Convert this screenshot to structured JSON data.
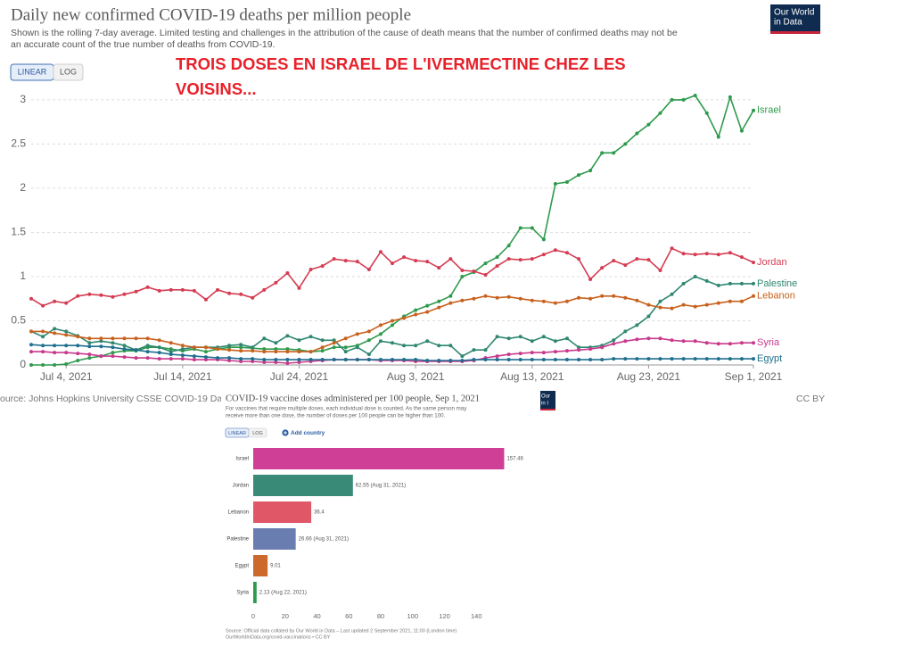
{
  "chart_data": [
    {
      "type": "line",
      "title": "Daily new confirmed COVID-19 deaths per million people",
      "subtitle": [
        "Shown is the rolling 7-day average. Limited testing and challenges in the attribution of the cause of death means that the number of confirmed deaths may not be",
        "an accurate count of the true number of deaths from COVID-19."
      ],
      "controls": [
        "LINEAR",
        "LOG"
      ],
      "annotation": [
        "TROIS DOSES EN ISRAEL DE L'IVERMECTINE CHEZ LES",
        "VOISINS..."
      ],
      "categories": [
        null,
        null,
        null,
        "Jul 4, 2021",
        null,
        null,
        null,
        null,
        null,
        null,
        null,
        null,
        null,
        "Jul 14, 2021",
        null,
        null,
        null,
        null,
        null,
        null,
        null,
        null,
        null,
        "Jul 24, 2021",
        null,
        null,
        null,
        null,
        null,
        null,
        null,
        null,
        null,
        "Aug 3, 2021",
        null,
        null,
        null,
        null,
        null,
        null,
        null,
        null,
        null,
        "Aug 13, 2021",
        null,
        null,
        null,
        null,
        null,
        null,
        null,
        null,
        null,
        "Aug 23, 2021",
        null,
        null,
        null,
        null,
        null,
        null,
        null,
        null,
        "Sep 1, 2021"
      ],
      "series": [
        {
          "name": "Israel",
          "color": "#2e9a4c",
          "values": [
            0,
            0,
            0,
            0.01,
            0.05,
            0.08,
            0.1,
            0.14,
            0.16,
            0.16,
            0.2,
            0.2,
            0.18,
            0.16,
            0.18,
            0.15,
            0.18,
            0.2,
            0.2,
            0.19,
            0.18,
            0.18,
            0.18,
            0.17,
            0.15,
            0.16,
            0.2,
            0.2,
            0.22,
            0.28,
            0.35,
            0.45,
            0.55,
            0.62,
            0.67,
            0.72,
            0.78,
            1.0,
            1.05,
            1.15,
            1.22,
            1.35,
            1.55,
            1.55,
            1.42,
            2.05,
            2.07,
            2.15,
            2.2,
            2.4,
            2.4,
            2.5,
            2.62,
            2.72,
            2.85,
            3.0,
            3.0,
            3.05,
            2.85,
            2.58,
            3.03,
            2.65,
            2.88
          ]
        },
        {
          "name": "Jordan",
          "color": "#d53c52",
          "values": [
            0.75,
            0.67,
            0.72,
            0.7,
            0.78,
            0.8,
            0.79,
            0.77,
            0.8,
            0.83,
            0.88,
            0.84,
            0.85,
            0.85,
            0.84,
            0.74,
            0.85,
            0.81,
            0.8,
            0.76,
            0.85,
            0.93,
            1.04,
            0.87,
            1.08,
            1.12,
            1.2,
            1.18,
            1.17,
            1.08,
            1.28,
            1.15,
            1.22,
            1.18,
            1.17,
            1.1,
            1.2,
            1.07,
            1.06,
            1.02,
            1.12,
            1.2,
            1.19,
            1.2,
            1.25,
            1.3,
            1.27,
            1.2,
            0.97,
            1.1,
            1.18,
            1.13,
            1.2,
            1.19,
            1.07,
            1.32,
            1.26,
            1.25,
            1.26,
            1.25,
            1.27,
            1.22,
            1.16
          ]
        },
        {
          "name": "Palestine",
          "color": "#2f8770",
          "values": [
            0.38,
            0.32,
            0.41,
            0.38,
            0.33,
            0.25,
            0.27,
            0.25,
            0.22,
            0.17,
            0.22,
            0.2,
            0.15,
            0.18,
            0.2,
            0.2,
            0.2,
            0.22,
            0.23,
            0.2,
            0.3,
            0.25,
            0.33,
            0.28,
            0.32,
            0.28,
            0.28,
            0.15,
            0.2,
            0.12,
            0.27,
            0.25,
            0.22,
            0.22,
            0.27,
            0.22,
            0.22,
            0.1,
            0.17,
            0.17,
            0.32,
            0.3,
            0.32,
            0.27,
            0.32,
            0.27,
            0.3,
            0.2,
            0.2,
            0.22,
            0.28,
            0.38,
            0.45,
            0.55,
            0.72,
            0.8,
            0.92,
            1.0,
            0.95,
            0.9,
            0.92,
            0.92,
            0.92
          ]
        },
        {
          "name": "Lebanon",
          "color": "#c8611d",
          "values": [
            0.38,
            0.38,
            0.36,
            0.34,
            0.32,
            0.3,
            0.3,
            0.3,
            0.3,
            0.3,
            0.3,
            0.28,
            0.25,
            0.22,
            0.2,
            0.2,
            0.18,
            0.17,
            0.16,
            0.16,
            0.15,
            0.15,
            0.15,
            0.15,
            0.15,
            0.2,
            0.25,
            0.3,
            0.35,
            0.38,
            0.45,
            0.5,
            0.53,
            0.57,
            0.6,
            0.65,
            0.7,
            0.73,
            0.75,
            0.78,
            0.76,
            0.77,
            0.75,
            0.73,
            0.72,
            0.7,
            0.72,
            0.76,
            0.75,
            0.78,
            0.78,
            0.76,
            0.73,
            0.68,
            0.65,
            0.64,
            0.68,
            0.66,
            0.68,
            0.7,
            0.72,
            0.72,
            0.78
          ]
        },
        {
          "name": "Syria",
          "color": "#c8398c",
          "values": [
            0.15,
            0.15,
            0.14,
            0.14,
            0.13,
            0.12,
            0.1,
            0.1,
            0.09,
            0.08,
            0.08,
            0.07,
            0.07,
            0.07,
            0.06,
            0.06,
            0.06,
            0.05,
            0.04,
            0.04,
            0.03,
            0.03,
            0.02,
            0.03,
            0.04,
            0.05,
            0.06,
            0.06,
            0.06,
            0.06,
            0.05,
            0.05,
            0.05,
            0.04,
            0.04,
            0.04,
            0.04,
            0.04,
            0.05,
            0.08,
            0.1,
            0.12,
            0.13,
            0.14,
            0.14,
            0.15,
            0.16,
            0.17,
            0.18,
            0.2,
            0.24,
            0.27,
            0.29,
            0.3,
            0.3,
            0.28,
            0.27,
            0.27,
            0.25,
            0.24,
            0.24,
            0.25,
            0.25
          ]
        },
        {
          "name": "Egypt",
          "color": "#1f6f8f",
          "values": [
            0.23,
            0.22,
            0.22,
            0.22,
            0.22,
            0.21,
            0.21,
            0.2,
            0.18,
            0.17,
            0.15,
            0.14,
            0.12,
            0.11,
            0.1,
            0.09,
            0.08,
            0.08,
            0.07,
            0.07,
            0.06,
            0.06,
            0.06,
            0.06,
            0.06,
            0.06,
            0.06,
            0.06,
            0.06,
            0.06,
            0.06,
            0.06,
            0.06,
            0.06,
            0.05,
            0.05,
            0.05,
            0.05,
            0.06,
            0.06,
            0.06,
            0.06,
            0.06,
            0.06,
            0.06,
            0.06,
            0.06,
            0.06,
            0.06,
            0.06,
            0.07,
            0.07,
            0.07,
            0.07,
            0.07,
            0.07,
            0.07,
            0.07,
            0.07,
            0.07,
            0.07,
            0.07,
            0.07
          ]
        }
      ],
      "ylim": [
        0,
        3.1
      ],
      "yticks": [
        0,
        0.5,
        1,
        1.5,
        2,
        2.5,
        3
      ],
      "grid": true,
      "source": "ource: Johns Hopkins University CSSE COVID-19 Da",
      "license": "CC BY",
      "logo": [
        "Our World",
        "in Data"
      ]
    },
    {
      "type": "bar",
      "horizontal": true,
      "title": "COVID-19 vaccine doses administered per 100 people, Sep 1, 2021",
      "subtitle": [
        "For vaccines that require multiple doses, each individual dose is counted. As the same person may",
        "receive more than one dose, the number of doses per 100 people can be higher than 100."
      ],
      "controls": [
        "LINEAR",
        "LOG"
      ],
      "add_button": "Add country",
      "logo": [
        "Our",
        "in I"
      ],
      "categories": [
        "Israel",
        "Jordan",
        "Lebanon",
        "Palestine",
        "Egypt",
        "Syria"
      ],
      "values": [
        157.46,
        62.55,
        36.4,
        26.66,
        9.01,
        2.13
      ],
      "value_labels": [
        "157.46",
        "62.55 (Aug 31, 2021)",
        "36.4",
        "26.66 (Aug 31, 2021)",
        "9.01",
        "2.13 (Aug 22, 2021)"
      ],
      "colors": [
        "#cf3f96",
        "#3a8a78",
        "#e05868",
        "#6a7db0",
        "#cc6a2e",
        "#2e9a4c"
      ],
      "xlim": [
        0,
        160
      ],
      "xticks": [
        0,
        20,
        40,
        60,
        80,
        100,
        120,
        140
      ],
      "grid": false,
      "source": [
        "Source: Official data collated by Our World in Data – Last updated 2 September 2021, 11:00 (London time)",
        "OurWorldInData.org/covid-vaccinations • CC BY"
      ]
    }
  ]
}
